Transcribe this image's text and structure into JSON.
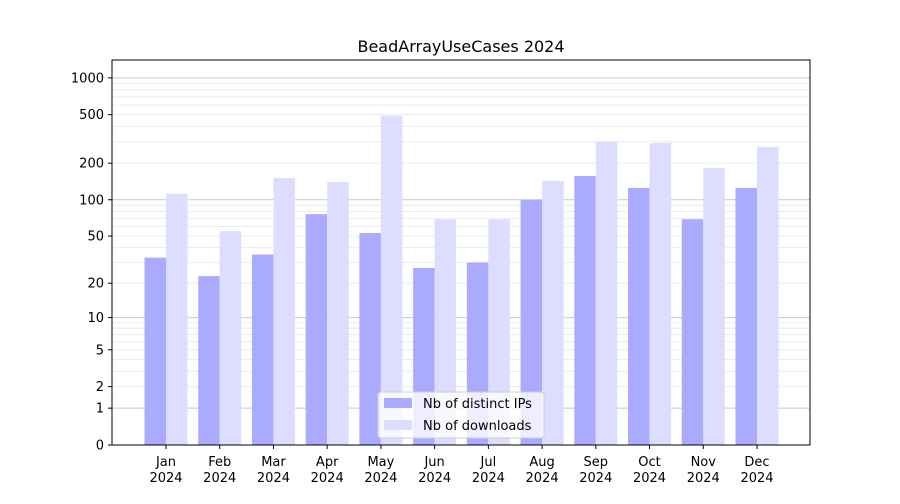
{
  "chart_data": {
    "type": "bar",
    "title": "BeadArrayUseCases 2024",
    "xlabel": "",
    "ylabel": "",
    "yscale": "log10(value + 1)",
    "ylim": [
      0,
      1400
    ],
    "yticks": [
      0,
      1,
      2,
      5,
      10,
      20,
      50,
      100,
      200,
      500,
      1000
    ],
    "grid": true,
    "legend_placement": "bottom-center",
    "categories": [
      "Jan\n2024",
      "Feb\n2024",
      "Mar\n2024",
      "Apr\n2024",
      "May\n2024",
      "Jun\n2024",
      "Jul\n2024",
      "Aug\n2024",
      "Sep\n2024",
      "Oct\n2024",
      "Nov\n2024",
      "Dec\n2024"
    ],
    "series": [
      {
        "name": "Nb of distinct IPs",
        "color": "#aaaaff",
        "values": [
          33,
          23,
          35,
          76,
          53,
          27,
          30,
          100,
          157,
          125,
          69,
          125
        ]
      },
      {
        "name": "Nb of downloads",
        "color": "#ddddff",
        "values": [
          112,
          55,
          151,
          140,
          489,
          69,
          69,
          143,
          299,
          293,
          183,
          272
        ]
      }
    ]
  }
}
